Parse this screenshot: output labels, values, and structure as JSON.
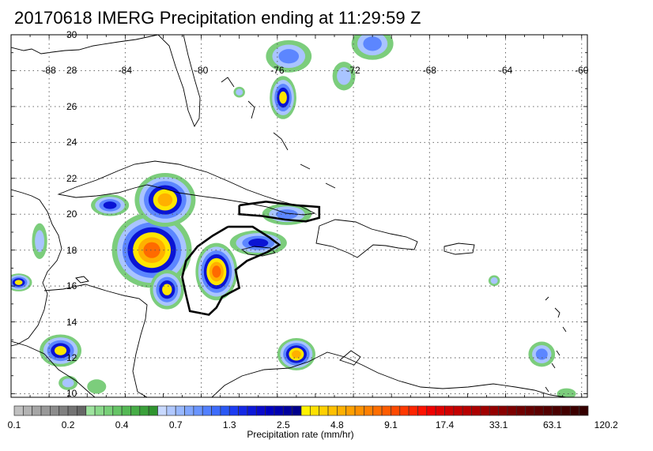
{
  "title": "20170618 IMERG Precipitation ending at 11:29:59 Z",
  "map": {
    "region": {
      "lon_min": -90,
      "lon_max": -59.7,
      "lat_min": 9.8,
      "lat_max": 30
    },
    "lat_labels": [
      {
        "lat": 30,
        "text": "30"
      },
      {
        "lat": 28,
        "text": "28"
      },
      {
        "lat": 26,
        "text": "26"
      },
      {
        "lat": 24,
        "text": "24"
      },
      {
        "lat": 22,
        "text": "22"
      },
      {
        "lat": 20,
        "text": "20"
      },
      {
        "lat": 18,
        "text": "18"
      },
      {
        "lat": 16,
        "text": "16"
      },
      {
        "lat": 14,
        "text": "14"
      },
      {
        "lat": 12,
        "text": "12"
      },
      {
        "lat": 10,
        "text": "10"
      }
    ],
    "lon_labels": [
      {
        "lon": -88,
        "text": "-88"
      },
      {
        "lon": -84,
        "text": "-84"
      },
      {
        "lon": -80,
        "text": "-80"
      },
      {
        "lon": -76,
        "text": "-76"
      },
      {
        "lon": -72,
        "text": "-72"
      },
      {
        "lon": -68,
        "text": "-68"
      },
      {
        "lon": -64,
        "text": "-64"
      },
      {
        "lon": -60,
        "text": "-60"
      }
    ],
    "lon_label_lat": 28,
    "gridlines": {
      "dotted": true,
      "lon_step": 4,
      "lat_step": 2
    },
    "precip_cells": [
      {
        "lon": -82.6,
        "lat": 18.0,
        "rx": 2.1,
        "ry": 2.1,
        "peak": 17.4
      },
      {
        "lon": -81.9,
        "lat": 20.8,
        "rx": 1.6,
        "ry": 1.5,
        "peak": 9.1
      },
      {
        "lon": -84.8,
        "lat": 20.5,
        "rx": 1.0,
        "ry": 0.6,
        "peak": 2.5
      },
      {
        "lon": -81.8,
        "lat": 15.8,
        "rx": 0.9,
        "ry": 1.1,
        "peak": 4.8
      },
      {
        "lon": -79.2,
        "lat": 16.8,
        "rx": 1.1,
        "ry": 1.6,
        "peak": 17.4
      },
      {
        "lon": -77.0,
        "lat": 18.4,
        "rx": 1.5,
        "ry": 0.7,
        "peak": 2.5
      },
      {
        "lon": -75.5,
        "lat": 20.0,
        "rx": 1.3,
        "ry": 0.6,
        "peak": 1.3
      },
      {
        "lon": -75.7,
        "lat": 26.5,
        "rx": 0.7,
        "ry": 1.2,
        "peak": 4.8
      },
      {
        "lon": -75.4,
        "lat": 28.8,
        "rx": 1.2,
        "ry": 0.9,
        "peak": 1.3
      },
      {
        "lon": -71.0,
        "lat": 29.5,
        "rx": 1.1,
        "ry": 0.9,
        "peak": 1.3
      },
      {
        "lon": -72.5,
        "lat": 27.7,
        "rx": 0.6,
        "ry": 0.8,
        "peak": 0.7
      },
      {
        "lon": -89.6,
        "lat": 16.2,
        "rx": 0.7,
        "ry": 0.5,
        "peak": 4.8
      },
      {
        "lon": -87.4,
        "lat": 12.4,
        "rx": 1.1,
        "ry": 0.9,
        "peak": 4.8
      },
      {
        "lon": -75.0,
        "lat": 12.2,
        "rx": 1.0,
        "ry": 0.9,
        "peak": 9.1
      },
      {
        "lon": -62.1,
        "lat": 12.2,
        "rx": 0.7,
        "ry": 0.7,
        "peak": 1.3
      },
      {
        "lon": -88.5,
        "lat": 18.5,
        "rx": 0.4,
        "ry": 1.0,
        "peak": 0.7
      },
      {
        "lon": -78.0,
        "lat": 26.8,
        "rx": 0.3,
        "ry": 0.3,
        "peak": 0.7
      },
      {
        "lon": -64.6,
        "lat": 16.3,
        "rx": 0.3,
        "ry": 0.3,
        "peak": 0.7
      },
      {
        "lon": -87.0,
        "lat": 10.6,
        "rx": 0.5,
        "ry": 0.4,
        "peak": 0.7
      },
      {
        "lon": -85.5,
        "lat": 10.4,
        "rx": 0.5,
        "ry": 0.4,
        "peak": 0.4
      },
      {
        "lon": -60.8,
        "lat": 10.0,
        "rx": 0.5,
        "ry": 0.3,
        "peak": 0.4
      }
    ],
    "black_contours": [
      {
        "name": "contour-south-cuba",
        "points": [
          [
            -78.0,
            20.5
          ],
          [
            -76.6,
            20.7
          ],
          [
            -75.0,
            20.5
          ],
          [
            -73.8,
            20.4
          ],
          [
            -73.8,
            19.8
          ],
          [
            -74.5,
            19.6
          ],
          [
            -75.6,
            19.7
          ],
          [
            -76.8,
            19.9
          ],
          [
            -78.0,
            20.0
          ],
          [
            -78.0,
            20.5
          ]
        ]
      },
      {
        "name": "contour-jamaica-region",
        "points": [
          [
            -78.6,
            19.3
          ],
          [
            -77.3,
            19.3
          ],
          [
            -76.4,
            18.7
          ],
          [
            -75.9,
            18.3
          ],
          [
            -76.5,
            17.9
          ],
          [
            -77.6,
            17.4
          ],
          [
            -78.2,
            16.9
          ],
          [
            -78.0,
            15.9
          ],
          [
            -78.9,
            15.4
          ],
          [
            -79.2,
            14.8
          ],
          [
            -79.6,
            14.4
          ],
          [
            -80.6,
            14.6
          ],
          [
            -80.8,
            15.5
          ],
          [
            -81.0,
            16.5
          ],
          [
            -80.8,
            17.4
          ],
          [
            -80.2,
            18.2
          ],
          [
            -79.4,
            18.8
          ],
          [
            -78.6,
            19.3
          ]
        ]
      }
    ]
  },
  "colorbar": {
    "title": "Precipitation rate (mm/hr)",
    "tick_labels": [
      "0.1",
      "0.2",
      "0.4",
      "0.7",
      "1.3",
      "2.5",
      "4.8",
      "9.1",
      "17.4",
      "33.1",
      "63.1",
      "120.2"
    ],
    "colors": [
      "#c0c0c0",
      "#b3b3b3",
      "#a6a6a6",
      "#999999",
      "#8c8c8c",
      "#808080",
      "#737373",
      "#666666",
      "#9ee39e",
      "#8ad98a",
      "#78cf78",
      "#66c466",
      "#55b955",
      "#47ad47",
      "#3aa03a",
      "#2f942f",
      "#c8d9ff",
      "#b0c8ff",
      "#98b8ff",
      "#80a6ff",
      "#6994ff",
      "#5280ff",
      "#3d6cfc",
      "#2a58f5",
      "#1c3cf2",
      "#1428e6",
      "#0c18d9",
      "#0a0acc",
      "#0000c0",
      "#0000b0",
      "#00009e",
      "#00008c",
      "#fff200",
      "#ffe100",
      "#ffd000",
      "#ffc000",
      "#ffb000",
      "#ffa000",
      "#ff9000",
      "#ff7f00",
      "#ff6e00",
      "#ff5c00",
      "#ff4a00",
      "#ff3800",
      "#ff2500",
      "#ff1200",
      "#f00000",
      "#e00000",
      "#d00000",
      "#c40000",
      "#b80000",
      "#ac0000",
      "#a00000",
      "#940000",
      "#880000",
      "#7c0000",
      "#6f0000",
      "#650000",
      "#5c0000",
      "#530000",
      "#4b0000",
      "#430000",
      "#3c0000",
      "#350000"
    ]
  }
}
